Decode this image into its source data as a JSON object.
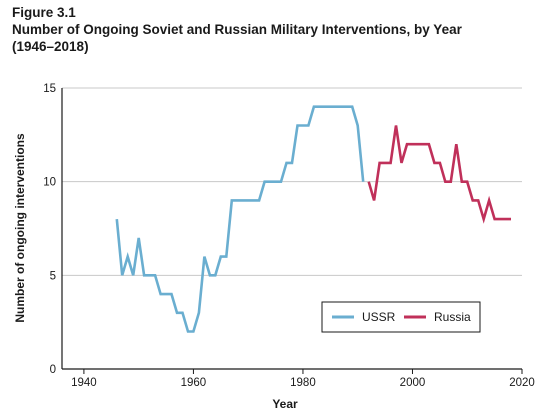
{
  "figure": {
    "label": "Figure 3.1",
    "title_line1": "Number of Ongoing Soviet and Russian Military Interventions, by Year",
    "title_line2": "(1946–2018)"
  },
  "chart_data": {
    "type": "line",
    "xlabel": "Year",
    "ylabel": "Number of ongoing interventions",
    "xlim": [
      1936,
      2020
    ],
    "ylim": [
      0,
      15
    ],
    "xticks": [
      1940,
      1960,
      1980,
      2000,
      2020
    ],
    "yticks": [
      0,
      5,
      10,
      15
    ],
    "grid": "horizontal",
    "legend_position": "bottom-right",
    "series": [
      {
        "name": "USSR",
        "color": "#6aaed0",
        "x": [
          1946,
          1947,
          1948,
          1949,
          1950,
          1951,
          1952,
          1953,
          1954,
          1955,
          1956,
          1957,
          1958,
          1959,
          1960,
          1961,
          1962,
          1963,
          1964,
          1965,
          1966,
          1967,
          1968,
          1969,
          1970,
          1971,
          1972,
          1973,
          1974,
          1975,
          1976,
          1977,
          1978,
          1979,
          1980,
          1981,
          1982,
          1983,
          1984,
          1985,
          1986,
          1987,
          1988,
          1989,
          1990,
          1991
        ],
        "y": [
          8,
          5,
          6,
          5,
          7,
          5,
          5,
          5,
          4,
          4,
          4,
          3,
          3,
          2,
          2,
          3,
          6,
          5,
          5,
          6,
          6,
          9,
          9,
          9,
          9,
          9,
          9,
          10,
          10,
          10,
          10,
          11,
          11,
          13,
          13,
          13,
          14,
          14,
          14,
          14,
          14,
          14,
          14,
          14,
          13,
          10
        ]
      },
      {
        "name": "Russia",
        "color": "#c0305a",
        "x": [
          1992,
          1993,
          1994,
          1995,
          1996,
          1997,
          1998,
          1999,
          2000,
          2001,
          2002,
          2003,
          2004,
          2005,
          2006,
          2007,
          2008,
          2009,
          2010,
          2011,
          2012,
          2013,
          2014,
          2015,
          2016,
          2017,
          2018
        ],
        "y": [
          10,
          9,
          11,
          11,
          11,
          13,
          11,
          12,
          12,
          12,
          12,
          12,
          11,
          11,
          10,
          10,
          12,
          10,
          10,
          9,
          9,
          8,
          9,
          8,
          8,
          8,
          8
        ]
      }
    ]
  }
}
